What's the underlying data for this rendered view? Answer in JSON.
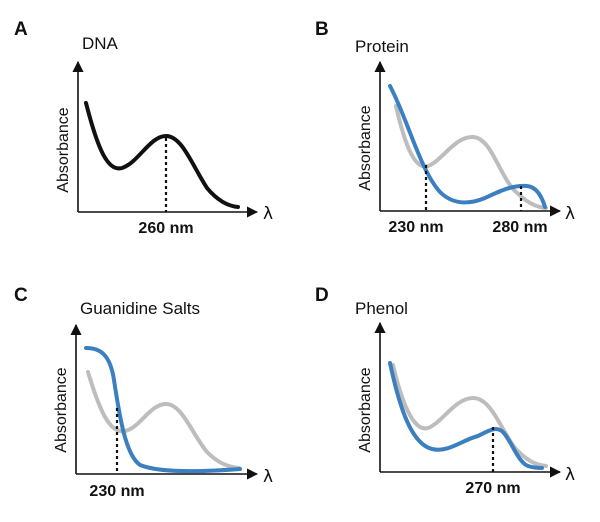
{
  "colors": {
    "dna": "#111111",
    "contaminant": "#3b7fc0",
    "reference": "#bdbdbd"
  },
  "chart_data": [
    {
      "type": "line",
      "panel": "A",
      "title": "DNA",
      "xlabel": "λ",
      "ylabel": "Absorbance",
      "markers": [
        {
          "label": "260 nm"
        }
      ],
      "series": [
        {
          "name": "DNA",
          "color_key": "dna"
        }
      ]
    },
    {
      "type": "line",
      "panel": "B",
      "title": "Protein",
      "xlabel": "λ",
      "ylabel": "Absorbance",
      "markers": [
        {
          "label": "230 nm"
        },
        {
          "label": "280 nm"
        }
      ],
      "series": [
        {
          "name": "Protein",
          "color_key": "contaminant"
        },
        {
          "name": "DNA",
          "color_key": "reference"
        }
      ]
    },
    {
      "type": "line",
      "panel": "C",
      "title": "Guanidine Salts",
      "xlabel": "λ",
      "ylabel": "Absorbance",
      "markers": [
        {
          "label": "230 nm"
        }
      ],
      "series": [
        {
          "name": "Guanidine Salts",
          "color_key": "contaminant"
        },
        {
          "name": "DNA",
          "color_key": "reference"
        }
      ]
    },
    {
      "type": "line",
      "panel": "D",
      "title": "Phenol",
      "xlabel": "λ",
      "ylabel": "Absorbance",
      "markers": [
        {
          "label": "270 nm"
        }
      ],
      "series": [
        {
          "name": "Phenol",
          "color_key": "contaminant"
        },
        {
          "name": "DNA",
          "color_key": "reference"
        }
      ]
    }
  ]
}
